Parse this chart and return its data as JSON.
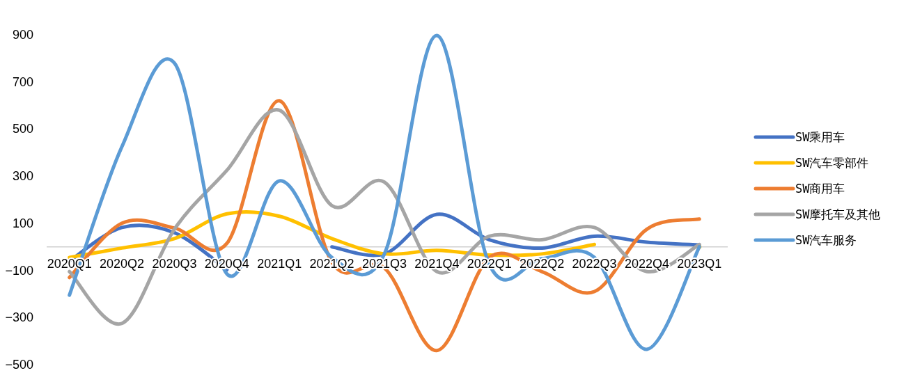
{
  "chart_data": {
    "type": "line",
    "categories": [
      "2020Q1",
      "2020Q2",
      "2020Q3",
      "2020Q4",
      "2021Q1",
      "2021Q2",
      "2021Q3",
      "2021Q4",
      "2022Q1",
      "2022Q2",
      "2022Q3",
      "2022Q4",
      "2023Q1"
    ],
    "ylim": [
      -500,
      900
    ],
    "yticks": [
      -500,
      -300,
      -100,
      100,
      300,
      500,
      700,
      900
    ],
    "grid": false,
    "legend": "right",
    "marker": "none",
    "line_style": "solid",
    "series": [
      {
        "name": "SW乘用车",
        "color": "#4472c4",
        "values": [
          -60,
          82,
          60,
          -97,
          null,
          0,
          -30,
          138,
          30,
          -5,
          45,
          20,
          8
        ]
      },
      {
        "name": "SW汽车零部件",
        "color": "#ffc000",
        "values": [
          -45,
          -5,
          35,
          140,
          130,
          35,
          -30,
          -15,
          -35,
          -30,
          10,
          null,
          0
        ]
      },
      {
        "name": "SW商用车",
        "color": "#ed7d31",
        "values": [
          -130,
          100,
          80,
          15,
          620,
          -65,
          -90,
          -440,
          -45,
          -105,
          -190,
          75,
          118
        ]
      },
      {
        "name": "SW摩托车及其他",
        "color": "#a5a5a5",
        "values": [
          -105,
          -325,
          75,
          325,
          580,
          175,
          275,
          -105,
          45,
          30,
          82,
          -105,
          10
        ]
      },
      {
        "name": "SW汽车服务",
        "color": "#5b9bd5",
        "values": [
          -205,
          425,
          780,
          -115,
          280,
          -45,
          -30,
          897,
          -75,
          -50,
          -45,
          -435,
          0
        ]
      }
    ]
  }
}
